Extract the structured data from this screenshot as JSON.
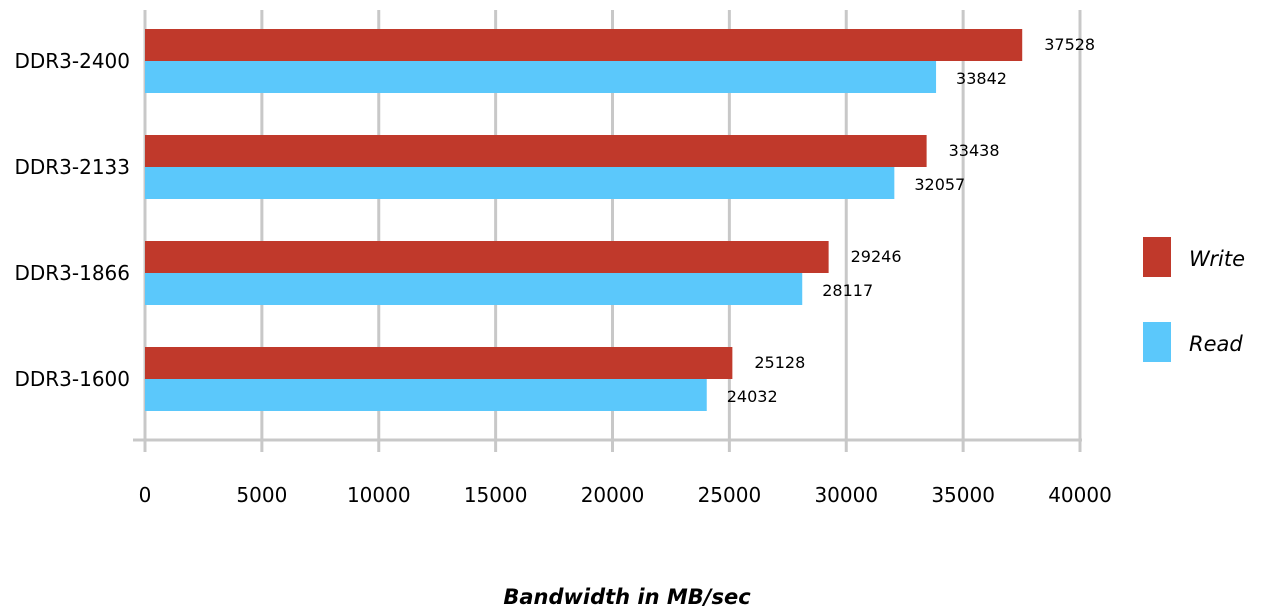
{
  "chart_data": {
    "type": "bar",
    "orientation": "horizontal",
    "categories": [
      "DDR3-2400",
      "DDR3-2133",
      "DDR3-1866",
      "DDR3-1600"
    ],
    "series": [
      {
        "name": "Write",
        "color": "#c0392b",
        "values": [
          37528,
          33438,
          29246,
          25128
        ]
      },
      {
        "name": "Read",
        "color": "#5bc8fb",
        "values": [
          33842,
          32057,
          28117,
          24032
        ]
      }
    ],
    "xlabel": "Bandwidth in MB/sec",
    "xlim": [
      0,
      40000
    ],
    "xticks": [
      0,
      5000,
      10000,
      15000,
      20000,
      25000,
      30000,
      35000,
      40000
    ],
    "grid": true,
    "gridline_color": "#c8c8c8",
    "legend_position": "right",
    "data_labels": true
  }
}
